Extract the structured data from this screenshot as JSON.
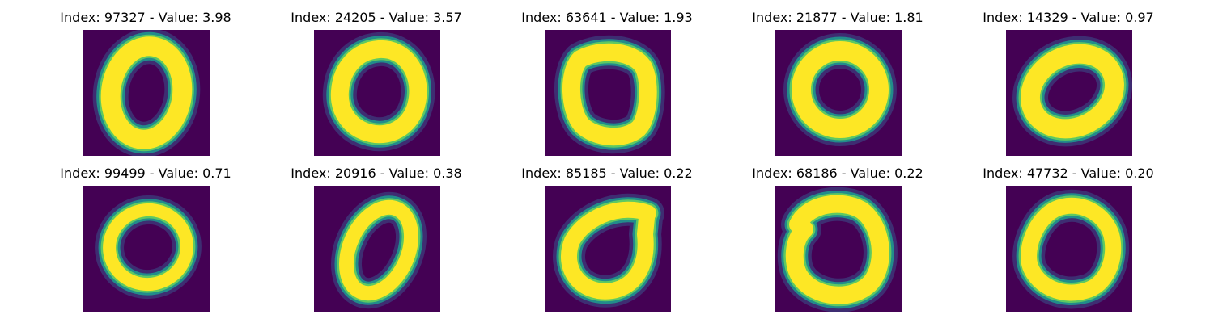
{
  "colors": {
    "background": "#440154",
    "mid": "#21918c",
    "high": "#fde725"
  },
  "panels": [
    {
      "title": "Index: 97327 - Value: 3.98",
      "shape": "narrow-oval"
    },
    {
      "title": "Index: 24205 - Value: 3.57",
      "shape": "rounded-triangle"
    },
    {
      "title": "Index: 63641 - Value: 1.93",
      "shape": "rounded-square"
    },
    {
      "title": "Index: 21877 - Value: 1.81",
      "shape": "round-ring"
    },
    {
      "title": "Index: 14329 - Value: 0.97",
      "shape": "tilted-oval"
    },
    {
      "title": "Index: 99499 - Value: 0.71",
      "shape": "thin-ring"
    },
    {
      "title": "Index: 20916 - Value: 0.38",
      "shape": "slanted-ring"
    },
    {
      "title": "Index: 85185 - Value: 0.22",
      "shape": "looped-zero"
    },
    {
      "title": "Index: 68186 - Value: 0.22",
      "shape": "open-ring"
    },
    {
      "title": "Index: 47732 - Value: 0.20",
      "shape": "pentagon-ring"
    }
  ]
}
